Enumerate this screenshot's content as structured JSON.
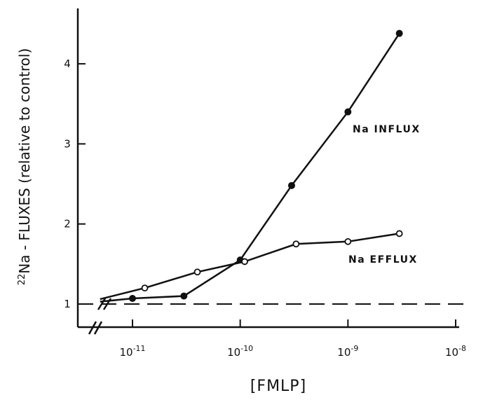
{
  "chart_data": {
    "type": "line",
    "title": "",
    "xlabel": "[FMLP]",
    "ylabel": "22Na - FLUXES (relative to control)",
    "ylabel_parts": {
      "superscript": "22",
      "main": "Na - FLUXES (relative to control)"
    },
    "x_scale": "log",
    "xlim": [
      5e-12,
      2e-08
    ],
    "ylim": [
      0.6,
      4.8
    ],
    "x_ticks": [
      {
        "value": 1e-11,
        "base": "10",
        "exp": "-11"
      },
      {
        "value": 1e-10,
        "base": "10",
        "exp": "-10"
      },
      {
        "value": 1e-09,
        "base": "10",
        "exp": "-9"
      },
      {
        "value": 1e-08,
        "base": "10",
        "exp": "-8"
      }
    ],
    "y_ticks": [
      {
        "value": 1,
        "label": "1"
      },
      {
        "value": 2,
        "label": "2"
      },
      {
        "value": 3,
        "label": "3"
      },
      {
        "value": 4,
        "label": "4"
      }
    ],
    "axis_break": true,
    "reference_line": {
      "y": 1,
      "style": "dashed"
    },
    "grid": false,
    "legend": "none",
    "series": [
      {
        "name": "Na INFLUX",
        "marker": "filled-circle",
        "x": [
          5e-12,
          1e-11,
          3e-11,
          1e-10,
          3e-10,
          1e-09,
          3e-09
        ],
        "y": [
          1.03,
          1.07,
          1.1,
          1.55,
          2.48,
          3.4,
          4.38
        ]
      },
      {
        "name": "Na EFFLUX",
        "marker": "open-circle",
        "x": [
          5e-12,
          1.3e-11,
          4e-11,
          1.1e-10,
          3.3e-10,
          1e-09,
          3e-09
        ],
        "y": [
          1.06,
          1.2,
          1.4,
          1.53,
          1.75,
          1.78,
          1.88
        ]
      }
    ]
  }
}
